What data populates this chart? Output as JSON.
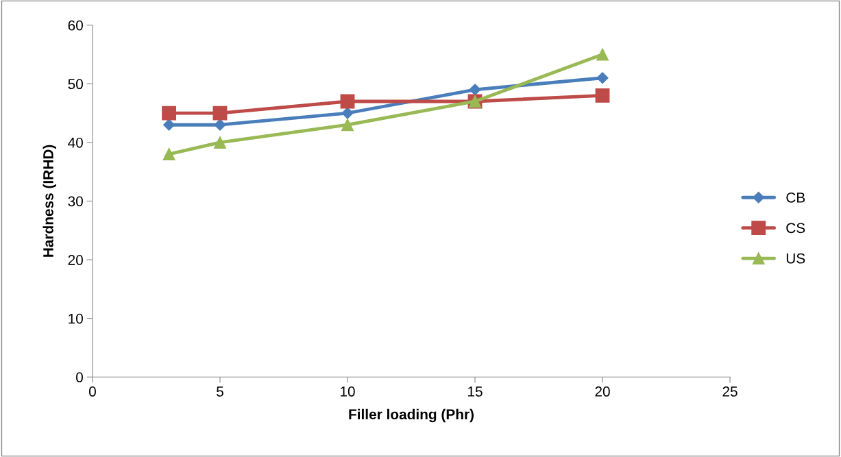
{
  "chart_data": {
    "type": "line",
    "xlabel": "Filler loading (Phr)",
    "ylabel": "Hardness (IRHD)",
    "x": [
      3,
      5,
      10,
      15,
      20
    ],
    "series": [
      {
        "name": "CB",
        "color": "#4a7ebb",
        "marker": "diamond",
        "values": [
          43,
          43,
          45,
          49,
          51
        ]
      },
      {
        "name": "CS",
        "color": "#be4b48",
        "marker": "square",
        "values": [
          45,
          45,
          47,
          47,
          48
        ]
      },
      {
        "name": "US",
        "color": "#98b954",
        "marker": "triangle",
        "values": [
          38,
          40,
          43,
          47,
          55
        ]
      }
    ],
    "xlim": [
      0,
      25
    ],
    "xticks": [
      0,
      5,
      10,
      15,
      20,
      25
    ],
    "ylim": [
      0,
      60
    ],
    "yticks": [
      0,
      10,
      20,
      30,
      40,
      50,
      60
    ],
    "grid": false,
    "legend": "right",
    "line_style": "solid"
  }
}
